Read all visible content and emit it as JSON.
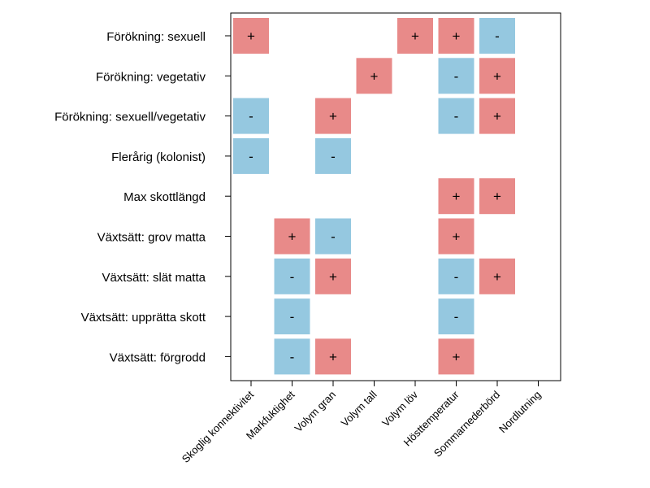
{
  "chart_data": {
    "type": "heatmap",
    "title": "",
    "xlabel": "",
    "ylabel": "",
    "categories": [
      "Skoglig konnektivitet",
      "Markfuktighet",
      "Volym gran",
      "Volym tall",
      "Volym löv",
      "Hösttemperatur",
      "Sommarnederbörd",
      "Nordlutning"
    ],
    "rows": [
      "Förökning: sexuell",
      "Förökning: vegetativ",
      "Förökning: sexuell/vegetativ",
      "Flerårig (kolonist)",
      "Max skottlängd",
      "Växtsätt: grov matta",
      "Växtsätt: slät matta",
      "Växtsätt: upprätta skott",
      "Växtsätt: förgrodd"
    ],
    "cells": [
      [
        "+",
        "",
        "",
        "",
        "+",
        "+",
        "-",
        ""
      ],
      [
        "",
        "",
        "",
        "+",
        "",
        "-",
        "+",
        ""
      ],
      [
        "-",
        "",
        "+",
        "",
        "",
        "-",
        "+",
        ""
      ],
      [
        "-",
        "",
        "-",
        "",
        "",
        "",
        "",
        ""
      ],
      [
        "",
        "",
        "",
        "",
        "",
        "+",
        "+",
        ""
      ],
      [
        "",
        "+",
        "-",
        "",
        "",
        "+",
        "",
        ""
      ],
      [
        "",
        "-",
        "+",
        "",
        "",
        "-",
        "+",
        ""
      ],
      [
        "",
        "-",
        "",
        "",
        "",
        "-",
        "",
        ""
      ],
      [
        "",
        "-",
        "+",
        "",
        "",
        "+",
        "",
        ""
      ]
    ],
    "legend": {
      "positive": {
        "symbol": "+",
        "color": "#E88A89"
      },
      "negative": {
        "symbol": "-",
        "color": "#95C8E0"
      }
    },
    "grid": false
  }
}
